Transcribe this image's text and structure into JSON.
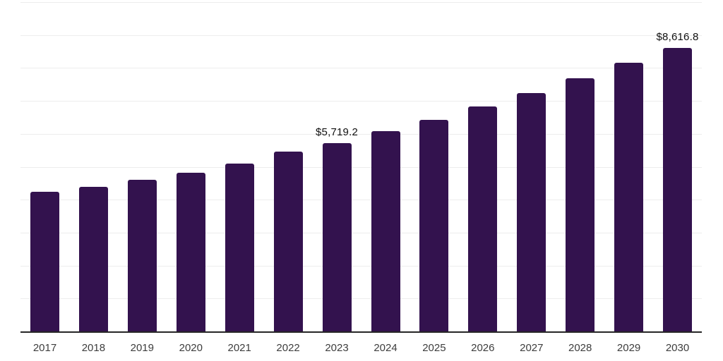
{
  "chart_data": {
    "type": "bar",
    "title": "",
    "xlabel": "",
    "ylabel": "",
    "categories": [
      "2017",
      "2018",
      "2019",
      "2020",
      "2021",
      "2022",
      "2023",
      "2024",
      "2025",
      "2026",
      "2027",
      "2028",
      "2029",
      "2030"
    ],
    "values": [
      4240,
      4390,
      4600,
      4815,
      5100,
      5460,
      5719.2,
      6080,
      6430,
      6830,
      7230,
      7680,
      8150,
      8616.8
    ],
    "data_labels": [
      "",
      "",
      "",
      "",
      "",
      "",
      "$5,719.2",
      "",
      "",
      "",
      "",
      "",
      "",
      "$8,616.8"
    ],
    "ylim": [
      0,
      10000
    ],
    "gridline_step": 1000,
    "grid": "horizontal-only",
    "legend": "none",
    "colors": {
      "bar": "#33124E",
      "axis_line": "#262626",
      "gridline": "#ededed",
      "data_label_text": "#111111",
      "tick_label_text": "#3d3d3d",
      "background": "#ffffff"
    }
  }
}
